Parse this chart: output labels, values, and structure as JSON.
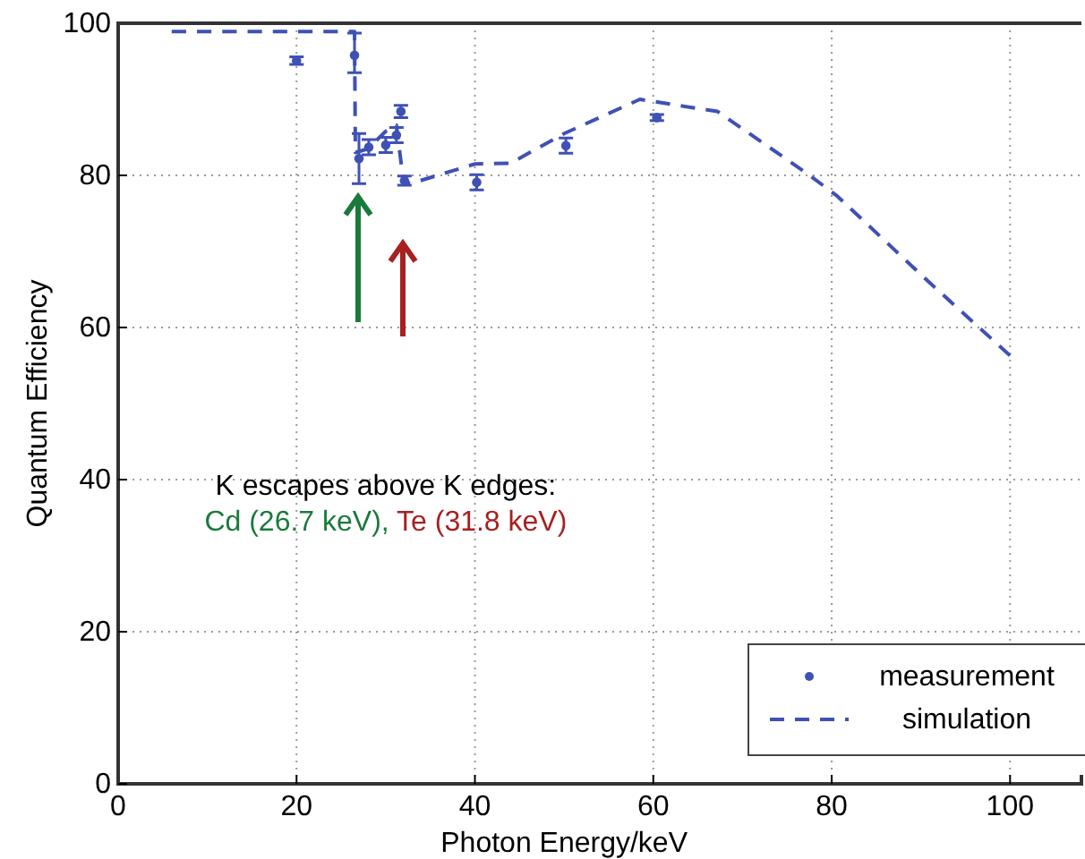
{
  "chart_data": {
    "type": "scatter",
    "xlabel": "Photon Energy/keV",
    "ylabel": "Quantum Efficiency",
    "xlim": [
      0,
      108
    ],
    "xticks": [
      0,
      20,
      40,
      60,
      80,
      100
    ],
    "ylim": [
      0,
      100
    ],
    "yticks": [
      0,
      20,
      40,
      60,
      80,
      100
    ],
    "grid": true,
    "legend": "bottom right",
    "series": [
      {
        "name": "measurement",
        "marker": "circle",
        "color": "#3f51b5",
        "x": [
          20,
          26.5,
          27,
          28.1,
          30,
          31.2,
          31.7,
          32.1,
          40.2,
          50.2,
          60.4
        ],
        "values": [
          95.1,
          95.8,
          82.2,
          83.7,
          84,
          85.3,
          88.4,
          79.3,
          79.1,
          83.9,
          87.6
        ],
        "errors": [
          0.5,
          [
            93.5,
            98.7
          ],
          [
            78.9,
            85.5
          ],
          1,
          1,
          1,
          0.8,
          0.6,
          1,
          1,
          0.4
        ]
      },
      {
        "name": "simulation",
        "type": "line",
        "line_style": "dashed",
        "color": "#3f51b5",
        "x": [
          6,
          15,
          25.6,
          26.5,
          26.6,
          28,
          30,
          31.2,
          32,
          33,
          40,
          44,
          50,
          58.5,
          67.2,
          77.3,
          80.6,
          90.7,
          100
        ],
        "values": [
          98.9,
          98.9,
          98.9,
          98.9,
          83,
          83.5,
          85.8,
          86.6,
          79,
          79,
          81.5,
          81.6,
          85.5,
          90,
          88.4,
          80.2,
          77.3,
          66.2,
          56.3
        ]
      }
    ],
    "annotations": [
      "K escapes above K edges:",
      "Cd (26.7 keV),",
      "Te (31.8 keV)"
    ]
  }
}
